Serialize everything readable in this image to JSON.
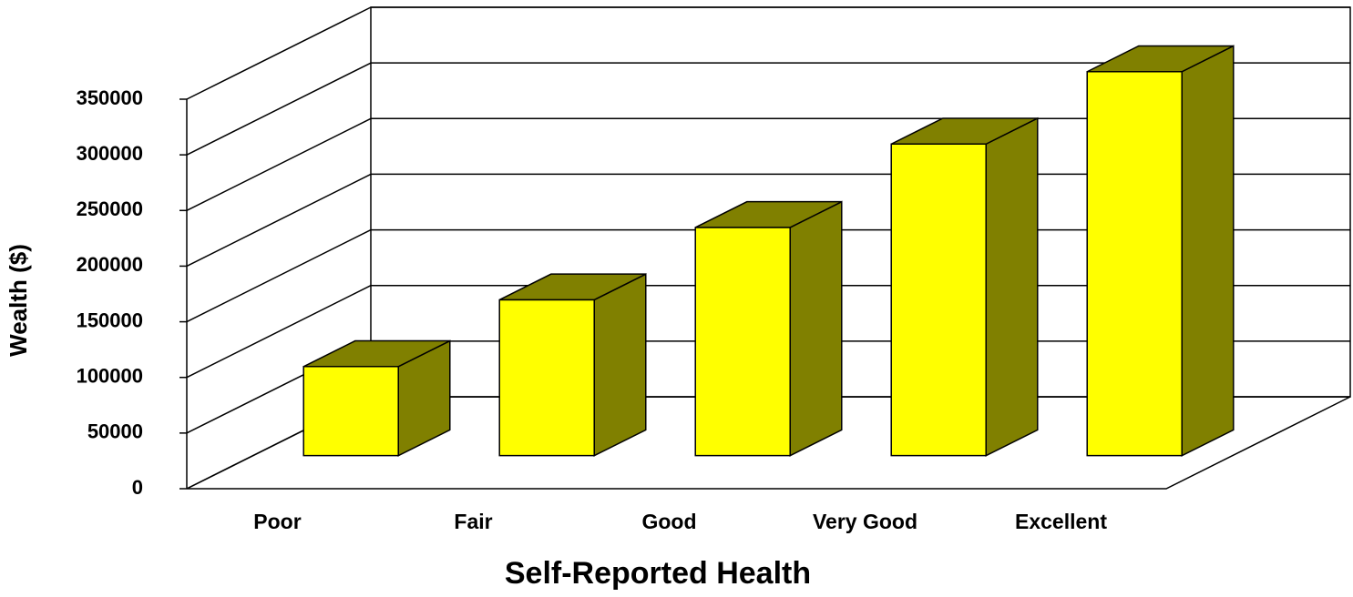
{
  "chart_data": {
    "type": "bar3d",
    "x_label": "Self-Reported Health",
    "y_label": "Wealth ($)",
    "categories": [
      "Poor",
      "Fair",
      "Good",
      "Very Good",
      "Excellent"
    ],
    "values": [
      80000,
      140000,
      205000,
      280000,
      345000
    ],
    "color": "#ffff00",
    "shade_color": "#808000",
    "ylim": [
      0,
      350000
    ],
    "yticks": [
      0,
      50000,
      100000,
      150000,
      200000,
      250000,
      300000,
      350000
    ],
    "grid": true
  }
}
